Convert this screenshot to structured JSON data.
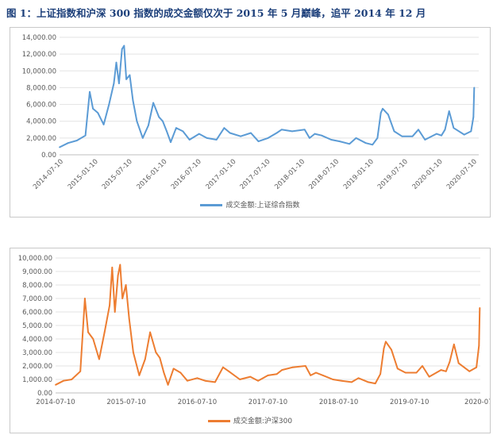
{
  "figure_title": "图 1：上证指数和沪深 300 指数的成交金额仅次于 2015 年 5 月巅峰，追平 2014 年 12 月",
  "colors": {
    "series1": "#5b9bd5",
    "series2": "#ed7d31",
    "grid": "#e3e3e3",
    "axis_text": "#595959"
  },
  "chart_data": [
    {
      "type": "line",
      "title": "",
      "xlabel": "",
      "ylabel": "",
      "ylim": [
        0,
        14000
      ],
      "x_range": [
        "2014-07-01",
        "2020-07-31"
      ],
      "y_ticks": [
        0,
        2000,
        4000,
        6000,
        8000,
        10000,
        12000,
        14000
      ],
      "y_tick_labels": [
        "0.00",
        "2,000.00",
        "4,000.00",
        "6,000.00",
        "8,000.00",
        "10,000.00",
        "12,000.00",
        "14,000.00"
      ],
      "x_ticks": [
        "2014-07-10",
        "2015-01-10",
        "2015-07-10",
        "2016-01-10",
        "2016-07-10",
        "2017-01-10",
        "2017-07-10",
        "2018-01-10",
        "2018-07-10",
        "2019-01-10",
        "2019-07-10",
        "2020-01-10",
        "2020-07-10"
      ],
      "grid": true,
      "legend_position": "bottom-center",
      "series": [
        {
          "name": "成交金额:上证综合指数",
          "points": [
            [
              "2014-07-01",
              900
            ],
            [
              "2014-08-15",
              1400
            ],
            [
              "2014-10-01",
              1700
            ],
            [
              "2014-11-15",
              2300
            ],
            [
              "2014-12-08",
              7500
            ],
            [
              "2014-12-25",
              5500
            ],
            [
              "2015-01-20",
              5000
            ],
            [
              "2015-02-20",
              3600
            ],
            [
              "2015-03-20",
              6000
            ],
            [
              "2015-04-15",
              8500
            ],
            [
              "2015-04-28",
              11000
            ],
            [
              "2015-05-12",
              8500
            ],
            [
              "2015-05-28",
              12600
            ],
            [
              "2015-06-08",
              13000
            ],
            [
              "2015-06-20",
              9000
            ],
            [
              "2015-07-08",
              9500
            ],
            [
              "2015-07-25",
              6500
            ],
            [
              "2015-08-15",
              4000
            ],
            [
              "2015-09-15",
              2000
            ],
            [
              "2015-10-15",
              3500
            ],
            [
              "2015-11-10",
              6200
            ],
            [
              "2015-12-10",
              4500
            ],
            [
              "2015-12-30",
              4000
            ],
            [
              "2016-01-20",
              2800
            ],
            [
              "2016-02-10",
              1500
            ],
            [
              "2016-03-10",
              3200
            ],
            [
              "2016-04-15",
              2800
            ],
            [
              "2016-05-20",
              1800
            ],
            [
              "2016-07-10",
              2500
            ],
            [
              "2016-08-20",
              2000
            ],
            [
              "2016-10-10",
              1800
            ],
            [
              "2016-11-20",
              3200
            ],
            [
              "2016-12-20",
              2600
            ],
            [
              "2017-02-15",
              2200
            ],
            [
              "2017-04-10",
              2600
            ],
            [
              "2017-05-20",
              1600
            ],
            [
              "2017-07-10",
              2000
            ],
            [
              "2017-08-25",
              2600
            ],
            [
              "2017-09-20",
              3000
            ],
            [
              "2017-11-15",
              2800
            ],
            [
              "2018-01-20",
              3000
            ],
            [
              "2018-02-15",
              2000
            ],
            [
              "2018-03-15",
              2500
            ],
            [
              "2018-04-20",
              2300
            ],
            [
              "2018-06-10",
              1800
            ],
            [
              "2018-07-25",
              1600
            ],
            [
              "2018-09-15",
              1300
            ],
            [
              "2018-10-20",
              2000
            ],
            [
              "2018-12-10",
              1400
            ],
            [
              "2019-01-15",
              1200
            ],
            [
              "2019-02-10",
              2000
            ],
            [
              "2019-02-28",
              5000
            ],
            [
              "2019-03-10",
              5500
            ],
            [
              "2019-04-08",
              4800
            ],
            [
              "2019-05-10",
              2800
            ],
            [
              "2019-06-20",
              2200
            ],
            [
              "2019-08-15",
              2200
            ],
            [
              "2019-09-15",
              3000
            ],
            [
              "2019-10-20",
              1800
            ],
            [
              "2019-12-20",
              2500
            ],
            [
              "2020-01-15",
              2300
            ],
            [
              "2020-02-03",
              3000
            ],
            [
              "2020-02-25",
              5200
            ],
            [
              "2020-03-20",
              3200
            ],
            [
              "2020-05-15",
              2400
            ],
            [
              "2020-06-20",
              2800
            ],
            [
              "2020-07-03",
              4500
            ],
            [
              "2020-07-07",
              8000
            ]
          ]
        }
      ]
    },
    {
      "type": "line",
      "title": "",
      "xlabel": "",
      "ylabel": "",
      "ylim": [
        0,
        10000
      ],
      "x_range": [
        "2014-07-10",
        "2020-07-10"
      ],
      "y_ticks": [
        0,
        1000,
        2000,
        3000,
        4000,
        5000,
        6000,
        7000,
        8000,
        9000,
        10000
      ],
      "y_tick_labels": [
        "0.00",
        "1,000.00",
        "2,000.00",
        "3,000.00",
        "4,000.00",
        "5,000.00",
        "6,000.00",
        "7,000.00",
        "8,000.00",
        "9,000.00",
        "10,000.00"
      ],
      "x_ticks": [
        "2014-07-10",
        "2015-07-10",
        "2016-07-10",
        "2017-07-10",
        "2018-07-10",
        "2019-07-10",
        "2020-07"
      ],
      "grid": true,
      "legend_position": "bottom-center",
      "series": [
        {
          "name": "成交金额:沪深300",
          "points": [
            [
              "2014-07-10",
              600
            ],
            [
              "2014-08-20",
              900
            ],
            [
              "2014-10-01",
              1000
            ],
            [
              "2014-11-15",
              1600
            ],
            [
              "2014-12-08",
              7000
            ],
            [
              "2014-12-25",
              4500
            ],
            [
              "2015-01-20",
              4000
            ],
            [
              "2015-02-20",
              2500
            ],
            [
              "2015-03-20",
              4500
            ],
            [
              "2015-04-15",
              6500
            ],
            [
              "2015-04-28",
              9300
            ],
            [
              "2015-05-12",
              6000
            ],
            [
              "2015-05-28",
              8700
            ],
            [
              "2015-06-08",
              9500
            ],
            [
              "2015-06-20",
              7000
            ],
            [
              "2015-07-08",
              8000
            ],
            [
              "2015-07-25",
              5500
            ],
            [
              "2015-08-15",
              3000
            ],
            [
              "2015-09-15",
              1300
            ],
            [
              "2015-10-15",
              2500
            ],
            [
              "2015-11-10",
              4500
            ],
            [
              "2015-12-10",
              3000
            ],
            [
              "2015-12-30",
              2600
            ],
            [
              "2016-01-20",
              1500
            ],
            [
              "2016-02-10",
              600
            ],
            [
              "2016-03-10",
              1800
            ],
            [
              "2016-04-15",
              1500
            ],
            [
              "2016-05-20",
              900
            ],
            [
              "2016-07-10",
              1100
            ],
            [
              "2016-08-20",
              900
            ],
            [
              "2016-10-10",
              800
            ],
            [
              "2016-11-20",
              1900
            ],
            [
              "2016-12-20",
              1600
            ],
            [
              "2017-02-15",
              1000
            ],
            [
              "2017-04-10",
              1200
            ],
            [
              "2017-05-20",
              900
            ],
            [
              "2017-07-10",
              1300
            ],
            [
              "2017-08-25",
              1400
            ],
            [
              "2017-09-20",
              1700
            ],
            [
              "2017-11-15",
              1900
            ],
            [
              "2018-01-20",
              2000
            ],
            [
              "2018-02-15",
              1300
            ],
            [
              "2018-03-15",
              1500
            ],
            [
              "2018-04-20",
              1300
            ],
            [
              "2018-06-10",
              1000
            ],
            [
              "2018-07-25",
              900
            ],
            [
              "2018-09-15",
              800
            ],
            [
              "2018-10-20",
              1100
            ],
            [
              "2018-12-10",
              800
            ],
            [
              "2019-01-15",
              700
            ],
            [
              "2019-02-10",
              1400
            ],
            [
              "2019-02-28",
              3300
            ],
            [
              "2019-03-10",
              3800
            ],
            [
              "2019-04-08",
              3200
            ],
            [
              "2019-05-10",
              1800
            ],
            [
              "2019-06-20",
              1500
            ],
            [
              "2019-08-15",
              1500
            ],
            [
              "2019-09-15",
              2000
            ],
            [
              "2019-10-20",
              1200
            ],
            [
              "2019-12-20",
              1700
            ],
            [
              "2020-01-15",
              1600
            ],
            [
              "2020-02-03",
              2300
            ],
            [
              "2020-02-25",
              3600
            ],
            [
              "2020-03-20",
              2200
            ],
            [
              "2020-05-15",
              1600
            ],
            [
              "2020-06-20",
              1900
            ],
            [
              "2020-07-03",
              3500
            ],
            [
              "2020-07-07",
              6300
            ]
          ]
        }
      ]
    }
  ]
}
